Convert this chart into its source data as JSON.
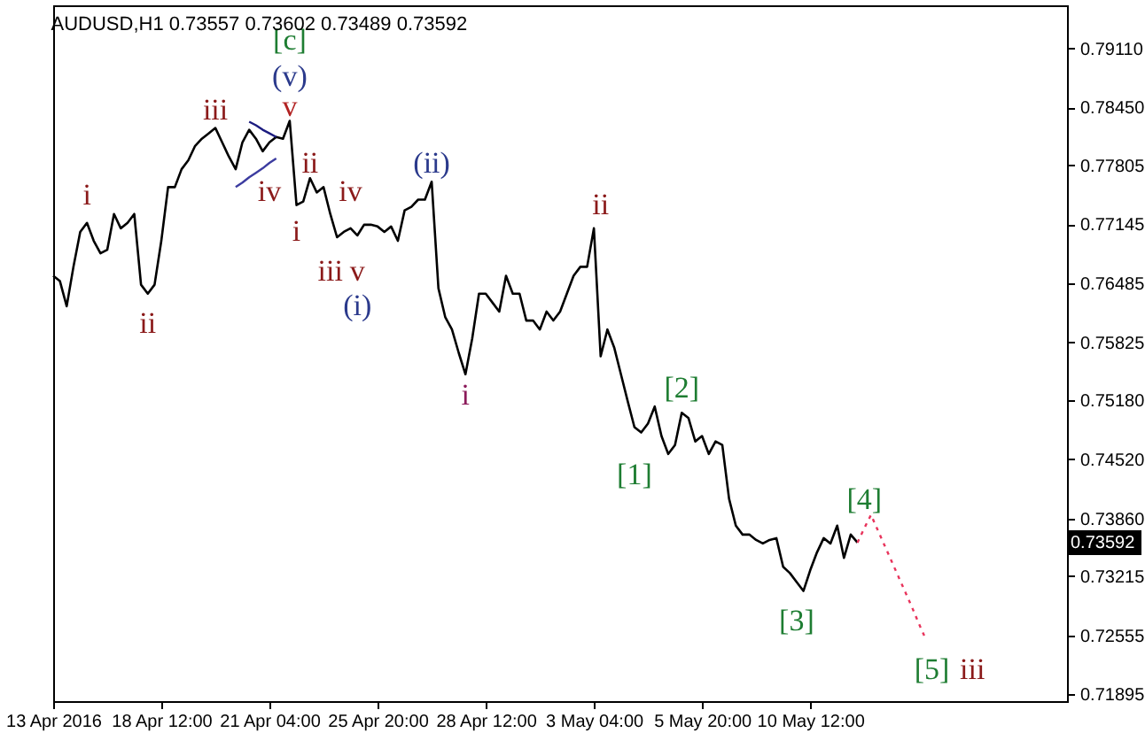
{
  "chart_data": {
    "type": "line",
    "title": "AUDUSD,H1 0.73557 0.73602 0.73489 0.73592",
    "categories": [
      "13 Apr 2016",
      null,
      null,
      null,
      null,
      null,
      null,
      null,
      null,
      null,
      null,
      null,
      null,
      null,
      null,
      null,
      "18 Apr 12:00",
      null,
      null,
      null,
      null,
      null,
      null,
      null,
      null,
      null,
      null,
      null,
      null,
      null,
      null,
      null,
      "21 Apr 04:00",
      null,
      null,
      null,
      null,
      null,
      null,
      null,
      null,
      null,
      null,
      null,
      null,
      null,
      null,
      null,
      "25 Apr 20:00",
      null,
      null,
      null,
      null,
      null,
      null,
      null,
      null,
      null,
      null,
      null,
      null,
      null,
      null,
      null,
      "28 Apr 12:00",
      null,
      null,
      null,
      null,
      null,
      null,
      null,
      null,
      null,
      null,
      null,
      null,
      null,
      null,
      null,
      "3 May 04:00",
      null,
      null,
      null,
      null,
      null,
      null,
      null,
      null,
      null,
      null,
      null,
      null,
      null,
      null,
      null,
      "5 May 20:00",
      null,
      null,
      null,
      null,
      null,
      null,
      null,
      null,
      null,
      null,
      null,
      null,
      null,
      null,
      null,
      "10 May 12:00",
      null,
      null,
      null,
      null,
      null,
      null,
      null,
      null,
      null,
      null,
      null,
      null,
      null,
      null,
      null,
      null,
      null,
      null,
      null,
      null,
      null,
      null,
      null,
      null,
      null,
      null,
      null,
      null,
      null,
      null,
      null,
      null,
      null,
      null,
      null,
      null,
      null,
      null
    ],
    "ylim": [
      0.7182,
      0.7959
    ],
    "yticks": [
      {
        "value": 0.7911,
        "label": "0.79110"
      },
      {
        "value": 0.7845,
        "label": "0.78450"
      },
      {
        "value": 0.77805,
        "label": "0.77805"
      },
      {
        "value": 0.77145,
        "label": "0.77145"
      },
      {
        "value": 0.76485,
        "label": "0.76485"
      },
      {
        "value": 0.75825,
        "label": "0.75825"
      },
      {
        "value": 0.7518,
        "label": "0.75180"
      },
      {
        "value": 0.7452,
        "label": "0.74520"
      },
      {
        "value": 0.7386,
        "label": "0.73860"
      },
      {
        "value": 0.73215,
        "label": "0.73215"
      },
      {
        "value": 0.72555,
        "label": "0.72555"
      },
      {
        "value": 0.71895,
        "label": "0.71895"
      }
    ],
    "marker": "none",
    "series": [
      {
        "color": "#000000",
        "line_style": "solid",
        "values": [
          0.7657,
          0.7651,
          0.7623,
          0.7667,
          0.7706,
          0.7716,
          0.7696,
          0.7682,
          0.7686,
          0.7726,
          0.771,
          0.7716,
          0.7726,
          0.7647,
          0.7637,
          0.7647,
          0.7696,
          0.7756,
          0.7756,
          0.7776,
          0.7786,
          0.7802,
          0.781,
          0.7816,
          0.7822,
          0.7806,
          0.779,
          0.7776,
          0.7806,
          0.782,
          0.781,
          0.7796,
          0.7806,
          0.7812,
          0.781,
          0.783,
          0.7736,
          0.774,
          0.7766,
          0.775,
          0.7756,
          0.7726,
          0.77,
          0.7706,
          0.771,
          0.7702,
          0.7714,
          0.7714,
          0.7712,
          0.7706,
          0.7712,
          0.7696,
          0.773,
          0.7734,
          0.7742,
          0.7742,
          0.7762,
          0.7643,
          0.7611,
          0.7597,
          0.7571,
          0.7547,
          0.7587,
          0.7637,
          0.7637,
          0.7627,
          0.7617,
          0.7657,
          0.7637,
          0.7637,
          0.7607,
          0.7607,
          0.7597,
          0.7617,
          0.7607,
          0.7617,
          0.7637,
          0.7657,
          0.7667,
          0.7667,
          0.771,
          0.7567,
          0.7597,
          0.7577,
          0.7547,
          0.7517,
          0.7488,
          0.7482,
          0.7492,
          0.7511,
          0.7478,
          0.7458,
          0.7468,
          0.7504,
          0.7498,
          0.7472,
          0.7478,
          0.7458,
          0.7472,
          0.7468,
          0.7408,
          0.7378,
          0.7368,
          0.7368,
          0.7362,
          0.7358,
          0.7362,
          0.7364,
          0.7332,
          0.7325,
          0.7315,
          0.7305,
          0.7328,
          0.7348,
          0.7364,
          0.7358,
          0.7378,
          0.7342,
          0.7368,
          0.7359,
          null,
          null,
          null,
          null,
          null,
          null,
          null,
          null,
          null,
          null,
          null,
          null,
          null,
          null,
          null,
          null,
          null,
          null,
          null,
          null,
          null,
          null,
          null,
          null,
          null,
          null,
          null,
          null,
          null,
          null,
          null
        ]
      },
      {
        "color": "#1c1c80",
        "line_style": "solid",
        "values": [
          null,
          null,
          null,
          null,
          null,
          null,
          null,
          null,
          null,
          null,
          null,
          null,
          null,
          null,
          null,
          null,
          null,
          null,
          null,
          null,
          null,
          null,
          null,
          null,
          null,
          null,
          null,
          null,
          null,
          0.7829,
          0.7825,
          0.782,
          0.7816,
          0.7812,
          null,
          null,
          null,
          null,
          null,
          null,
          null,
          null,
          null,
          null,
          null,
          null,
          null,
          null,
          null,
          null,
          null,
          null,
          null,
          null,
          null,
          null,
          null,
          null,
          null,
          null,
          null,
          null,
          null,
          null,
          null,
          null,
          null,
          null,
          null,
          null,
          null,
          null,
          null,
          null,
          null,
          null,
          null,
          null,
          null,
          null,
          null,
          null,
          null,
          null,
          null,
          null,
          null,
          null,
          null,
          null,
          null,
          null,
          null,
          null,
          null,
          null,
          null,
          null,
          null,
          null,
          null,
          null,
          null,
          null,
          null,
          null,
          null,
          null,
          null,
          null,
          null,
          null,
          null,
          null,
          null,
          null,
          null,
          null,
          null,
          null,
          null,
          null,
          null,
          null,
          null,
          null,
          null,
          null,
          null,
          null,
          null,
          null,
          null,
          null,
          null,
          null,
          null,
          null,
          null,
          null,
          null,
          null,
          null,
          null,
          null,
          null,
          null,
          null,
          null,
          null,
          null
        ]
      },
      {
        "color": "#3c3ca0",
        "line_style": "solid",
        "values": [
          null,
          null,
          null,
          null,
          null,
          null,
          null,
          null,
          null,
          null,
          null,
          null,
          null,
          null,
          null,
          null,
          null,
          null,
          null,
          null,
          null,
          null,
          null,
          null,
          null,
          null,
          null,
          0.7756,
          0.7761,
          0.7767,
          0.7772,
          0.7777,
          0.7783,
          0.7788,
          null,
          null,
          null,
          null,
          null,
          null,
          null,
          null,
          null,
          null,
          null,
          null,
          null,
          null,
          null,
          null,
          null,
          null,
          null,
          null,
          null,
          null,
          null,
          null,
          null,
          null,
          null,
          null,
          null,
          null,
          null,
          null,
          null,
          null,
          null,
          null,
          null,
          null,
          null,
          null,
          null,
          null,
          null,
          null,
          null,
          null,
          null,
          null,
          null,
          null,
          null,
          null,
          null,
          null,
          null,
          null,
          null,
          null,
          null,
          null,
          null,
          null,
          null,
          null,
          null,
          null,
          null,
          null,
          null,
          null,
          null,
          null,
          null,
          null,
          null,
          null,
          null,
          null,
          null,
          null,
          null,
          null,
          null,
          null,
          null,
          null,
          null,
          null,
          null,
          null,
          null,
          null,
          null,
          null,
          null,
          null,
          null,
          null,
          null,
          null,
          null,
          null,
          null,
          null,
          null,
          null,
          null,
          null,
          null,
          null,
          null,
          null,
          null,
          null,
          null,
          null,
          null
        ]
      },
      {
        "color": "#e8335b",
        "line_style": "dotted",
        "values": [
          null,
          null,
          null,
          null,
          null,
          null,
          null,
          null,
          null,
          null,
          null,
          null,
          null,
          null,
          null,
          null,
          null,
          null,
          null,
          null,
          null,
          null,
          null,
          null,
          null,
          null,
          null,
          null,
          null,
          null,
          null,
          null,
          null,
          null,
          null,
          null,
          null,
          null,
          null,
          null,
          null,
          null,
          null,
          null,
          null,
          null,
          null,
          null,
          null,
          null,
          null,
          null,
          null,
          null,
          null,
          null,
          null,
          null,
          null,
          null,
          null,
          null,
          null,
          null,
          null,
          null,
          null,
          null,
          null,
          null,
          null,
          null,
          null,
          null,
          null,
          null,
          null,
          null,
          null,
          null,
          null,
          null,
          null,
          null,
          null,
          null,
          null,
          null,
          null,
          null,
          null,
          null,
          null,
          null,
          null,
          null,
          null,
          null,
          null,
          null,
          null,
          null,
          null,
          null,
          null,
          null,
          null,
          null,
          null,
          null,
          null,
          null,
          null,
          null,
          null,
          null,
          null,
          null,
          null,
          0.7359,
          0.7375,
          0.739,
          0.7373,
          0.7356,
          0.7339,
          0.7322,
          0.7305,
          0.7288,
          0.727,
          0.7253,
          null,
          null,
          null,
          null,
          null,
          null,
          null,
          null,
          null,
          null,
          null,
          null,
          null,
          null,
          null,
          null,
          null,
          null,
          null,
          null,
          null
        ]
      }
    ],
    "annotations": [
      "i",
      "ii",
      "iii",
      "iv",
      "v",
      "(v)",
      "[c]",
      "ii",
      "i",
      "iv",
      "iii",
      "v",
      "(i)",
      "(ii)",
      "i",
      "ii",
      "[1]",
      "[2]",
      "[3]",
      "[4]",
      "[5]",
      "iii",
      "0.73592"
    ]
  }
}
